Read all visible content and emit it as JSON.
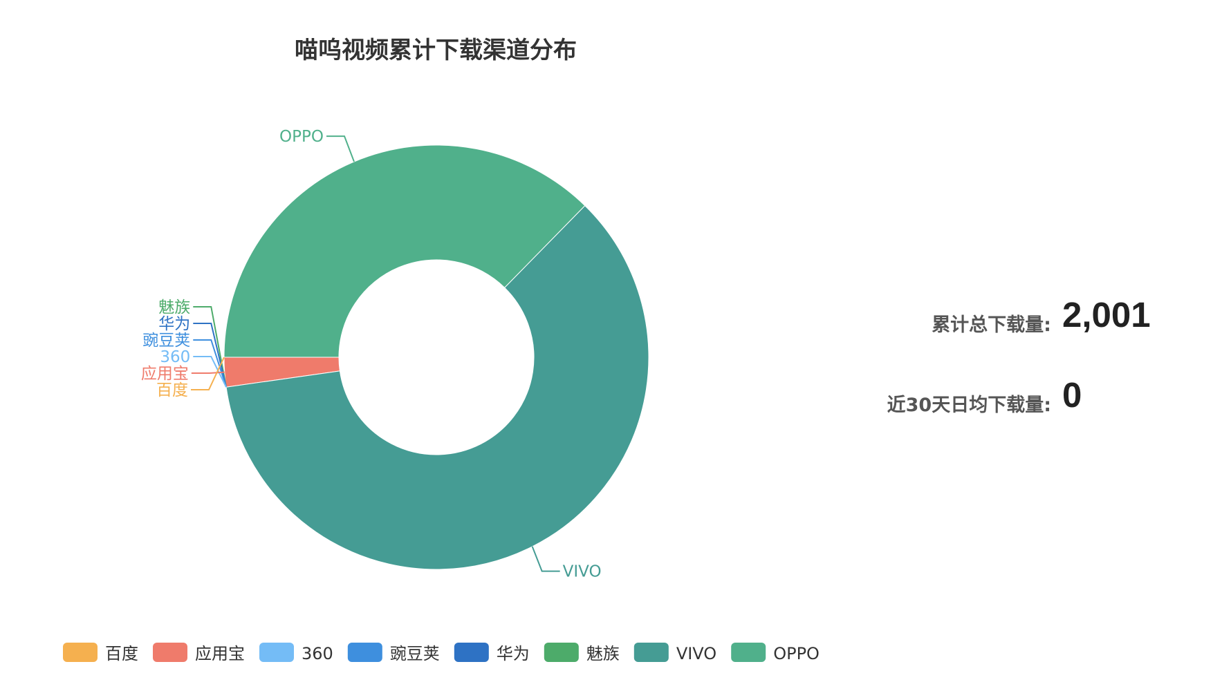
{
  "chart_data": {
    "type": "pie",
    "subtype": "donut",
    "title": "喵呜视频累计下载渠道分布",
    "slices": [
      {
        "name": "百度",
        "value": 0,
        "color": "#f5b04f"
      },
      {
        "name": "应用宝",
        "value": 45,
        "color": "#ef7b6b"
      },
      {
        "name": "360",
        "value": 0,
        "color": "#74bcf6"
      },
      {
        "name": "豌豆荚",
        "value": 0,
        "color": "#3e8fde"
      },
      {
        "name": "华为",
        "value": 0,
        "color": "#2e72c4"
      },
      {
        "name": "魅族",
        "value": 0,
        "color": "#4dab6a"
      },
      {
        "name": "VIVO",
        "value": 1209,
        "color": "#459c94"
      },
      {
        "name": "OPPO",
        "value": 747,
        "color": "#50b08b"
      }
    ],
    "legend_position": "bottom-left"
  },
  "stats": {
    "total_label": "累计总下载量:",
    "total_value": "2,001",
    "daily_label": "近30天日均下载量:",
    "daily_value": "0"
  }
}
